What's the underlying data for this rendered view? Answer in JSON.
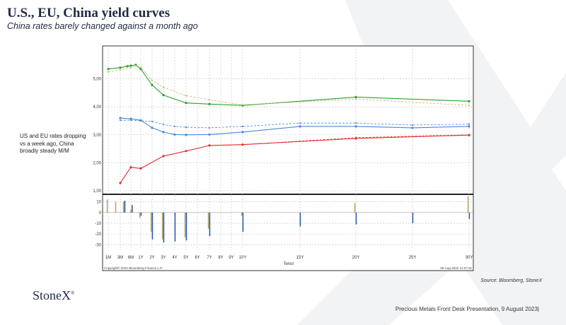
{
  "header": {
    "title": "U.S., EU, China yield curves",
    "subtitle": "China rates barely changed against a month ago"
  },
  "side_note": "US and EU rates dropping vs a week ago,  China broadly steady M/M",
  "source": "Source:  Bloomberg,  StoneX",
  "logo": {
    "text": "StoneX",
    "mark": "®"
  },
  "footer": "Precious Metals Front Desk Presentation, 9 August 2023|",
  "colors": {
    "us_current": "#2ca02c",
    "us_previous": "#c8b46a",
    "eu": "#4a86d8",
    "china": "#e03030",
    "bar_gold": "#b8a66a",
    "bar_blue": "#2e5ea8"
  },
  "chart_data": {
    "type": "line",
    "xlabel": "Tenor",
    "copyright": "Copyright© 2022 Bloomberg Finance L.P.",
    "timestamp": "09-Aug-2022 12:07:31",
    "tenors": [
      "1M",
      "3M",
      "6M",
      "1Y",
      "2Y",
      "3Y",
      "4Y",
      "5Y",
      "6Y",
      "7Y",
      "8Y",
      "9Y",
      "10Y",
      "15Y",
      "20Y",
      "25Y",
      "30Y"
    ],
    "tenor_years": [
      0.083,
      0.25,
      0.5,
      1,
      2,
      3,
      4,
      5,
      6,
      7,
      8,
      9,
      10,
      15,
      20,
      25,
      30
    ],
    "ylim": [
      0.9,
      6.0
    ],
    "yticks": [
      "1,00",
      "2,00",
      "3,00",
      "4,00",
      "5,00"
    ],
    "ytick_values": [
      1,
      2,
      3,
      4,
      5
    ],
    "series": [
      {
        "dashed": false,
        "color": "#2ca02c",
        "points": [
          [
            0.083,
            5.35
          ],
          [
            0.25,
            5.4
          ],
          [
            0.42,
            5.45
          ],
          [
            0.5,
            5.47
          ],
          [
            0.75,
            5.5
          ],
          [
            1,
            5.35
          ],
          [
            2,
            4.78
          ],
          [
            3,
            4.42
          ],
          [
            5,
            4.14
          ],
          [
            7,
            4.1
          ],
          [
            10,
            4.05
          ],
          [
            20,
            4.35
          ],
          [
            30,
            4.2
          ]
        ]
      },
      {
        "dashed": true,
        "color": "#c8b46a",
        "points": [
          [
            0.083,
            5.25
          ],
          [
            0.25,
            5.32
          ],
          [
            0.5,
            5.4
          ],
          [
            0.75,
            5.47
          ],
          [
            1,
            5.4
          ],
          [
            2,
            4.95
          ],
          [
            3,
            4.7
          ],
          [
            5,
            4.4
          ],
          [
            7,
            4.25
          ],
          [
            10,
            4.07
          ],
          [
            20,
            4.28
          ],
          [
            30,
            4.05
          ]
        ]
      },
      {
        "dashed": false,
        "color": "#4a86d8",
        "points": [
          [
            0.25,
            3.6
          ],
          [
            0.5,
            3.57
          ],
          [
            1,
            3.52
          ],
          [
            2,
            3.25
          ],
          [
            3,
            3.1
          ],
          [
            4,
            3.01
          ],
          [
            5,
            3.0
          ],
          [
            7,
            3.01
          ],
          [
            10,
            3.1
          ],
          [
            15,
            3.3
          ],
          [
            20,
            3.3
          ],
          [
            25,
            3.25
          ],
          [
            30,
            3.3
          ]
        ]
      },
      {
        "dashed": true,
        "color": "#4a86d8",
        "points": [
          [
            0.25,
            3.52
          ],
          [
            0.5,
            3.52
          ],
          [
            1,
            3.5
          ],
          [
            2,
            3.48
          ],
          [
            3,
            3.37
          ],
          [
            4,
            3.3
          ],
          [
            5,
            3.27
          ],
          [
            7,
            3.25
          ],
          [
            10,
            3.3
          ],
          [
            15,
            3.42
          ],
          [
            20,
            3.42
          ],
          [
            25,
            3.35
          ],
          [
            30,
            3.38
          ]
        ]
      },
      {
        "dashed": false,
        "color": "#e03030",
        "points": [
          [
            0.25,
            1.28
          ],
          [
            0.5,
            1.84
          ],
          [
            1,
            1.8
          ],
          [
            3,
            2.24
          ],
          [
            5,
            2.42
          ],
          [
            7,
            2.62
          ],
          [
            10,
            2.65
          ],
          [
            20,
            2.87
          ],
          [
            30,
            2.99
          ]
        ]
      },
      {
        "dashed": true,
        "color": "#e03030",
        "points": [
          [
            0.25,
            1.28
          ],
          [
            0.5,
            1.84
          ],
          [
            1,
            1.8
          ],
          [
            3,
            2.24
          ],
          [
            5,
            2.42
          ],
          [
            7,
            2.62
          ],
          [
            10,
            2.65
          ],
          [
            20,
            2.9
          ],
          [
            30,
            3.0
          ]
        ]
      }
    ],
    "bar_panel": {
      "ylim": [
        -35,
        15
      ],
      "yticks": [
        "10",
        "0",
        "-10",
        "-20",
        "-30"
      ],
      "ytick_values": [
        10,
        0,
        -10,
        -20,
        -30
      ],
      "bars": [
        {
          "x": 0.083,
          "gold": 12,
          "blue": 0
        },
        {
          "x": 0.2,
          "gold": 10,
          "blue": 0
        },
        {
          "x": 0.35,
          "gold": 10,
          "blue": 11
        },
        {
          "x": 0.55,
          "gold": 3,
          "blue": 7
        },
        {
          "x": 1,
          "gold": -5,
          "blue": -3
        },
        {
          "x": 2,
          "gold": -18,
          "blue": -25
        },
        {
          "x": 3,
          "gold": -25,
          "blue": -28
        },
        {
          "x": 4,
          "gold": 0,
          "blue": -27
        },
        {
          "x": 5,
          "gold": -23,
          "blue": -26
        },
        {
          "x": 7,
          "gold": -15,
          "blue": -22
        },
        {
          "x": 10,
          "gold": -3,
          "blue": -18
        },
        {
          "x": 15,
          "gold": 0,
          "blue": -13
        },
        {
          "x": 20,
          "gold": 9,
          "blue": -11
        },
        {
          "x": 25,
          "gold": 0,
          "blue": -10
        },
        {
          "x": 30,
          "gold": 15,
          "blue": -6
        }
      ]
    }
  }
}
